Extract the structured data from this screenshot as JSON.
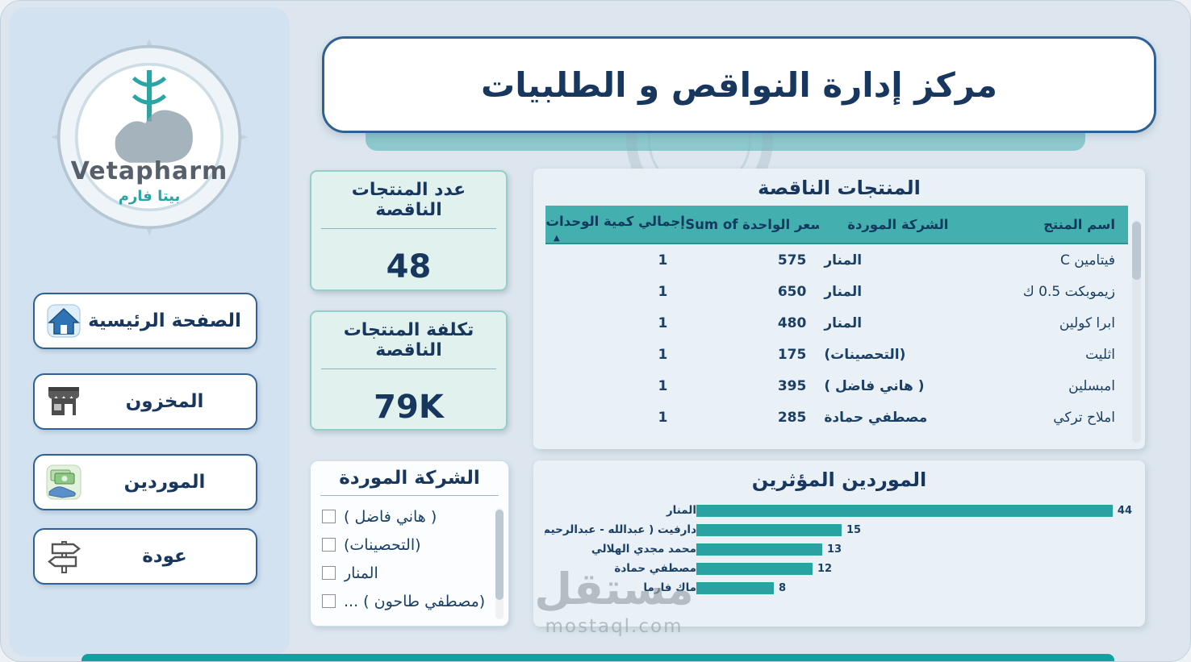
{
  "page": {
    "title": "مركز إدارة النواقص و الطلبيات",
    "watermark_title": "مستقل",
    "watermark_sub": "mostaql.com"
  },
  "colors": {
    "teal": "#2aa2a2",
    "navy": "#17375e"
  },
  "sidebar": {
    "logo_name": "Vetapharm",
    "logo_arabic": "بيتا فارم",
    "items": [
      {
        "label": "الصفحة الرئيسية",
        "icon": "home-icon"
      },
      {
        "label": "المخزون",
        "icon": "storefront-icon"
      },
      {
        "label": "الموردين",
        "icon": "money-hand-icon"
      },
      {
        "label": "عودة",
        "icon": "signpost-icon"
      }
    ]
  },
  "kpi_cards": [
    {
      "title": "عدد المنتجات الناقصة",
      "value": "48"
    },
    {
      "title": "تكلفة المنتجات الناقصة",
      "value": "79K"
    }
  ],
  "products_table": {
    "title": "المنتجات الناقصة",
    "columns": {
      "product": "اسم المنتج",
      "supplier": "الشركة الموردة",
      "price": "Sum of سعر الواحدة",
      "quantity": "إجمالي كمية الوحدات"
    },
    "sort_indicator": "▲",
    "rows": [
      {
        "product": "فيتامين C",
        "supplier": "المنار",
        "price": "575",
        "quantity": "1"
      },
      {
        "product": "زيموبكت 0.5 ك",
        "supplier": "المنار",
        "price": "650",
        "quantity": "1"
      },
      {
        "product": "ابرا كولين",
        "supplier": "المنار",
        "price": "480",
        "quantity": "1"
      },
      {
        "product": "اثليت",
        "supplier": "(التحصينات)",
        "price": "175",
        "quantity": "1"
      },
      {
        "product": "امبسلين",
        "supplier": "( هاني فاضل )",
        "price": "395",
        "quantity": "1"
      },
      {
        "product": "املاح تركي",
        "supplier": "مصطفي حمادة",
        "price": "285",
        "quantity": "1"
      }
    ]
  },
  "supplier_filter": {
    "title": "الشركة الموردة",
    "options": [
      {
        "label": "( هاني فاضل )",
        "checked": false
      },
      {
        "label": "(التحصينات)",
        "checked": false
      },
      {
        "label": "المنار",
        "checked": false
      },
      {
        "label": "(مصطفي طاحون ) ...",
        "checked": false
      }
    ]
  },
  "chart_data": {
    "type": "bar",
    "orientation": "horizontal",
    "title": "الموردين المؤثرين",
    "categories": [
      "المنار",
      "دارفيت ( عبدالله - عبدالرحيم )",
      "محمد مجدي الهلالي",
      "مصطفي حمادة",
      "ماك فارما"
    ],
    "values": [
      44,
      15,
      13,
      12,
      8
    ],
    "xlim": [
      0,
      45
    ],
    "bar_color": "#2aa2a2",
    "legend": "none",
    "grid": false
  }
}
